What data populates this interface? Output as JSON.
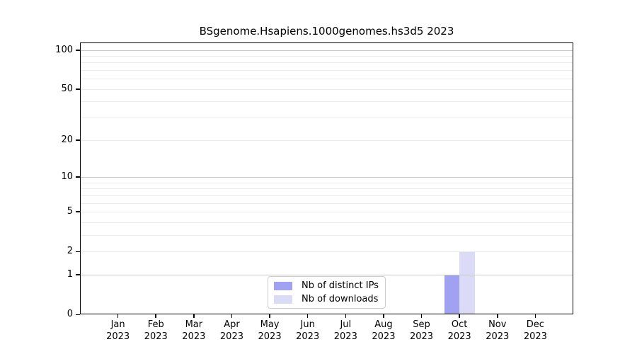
{
  "chart_data": {
    "type": "bar",
    "title": "BSgenome.Hsapiens.1000genomes.hs3d5 2023",
    "year_label": "2023",
    "categories": [
      "Jan",
      "Feb",
      "Mar",
      "Apr",
      "May",
      "Jun",
      "Jul",
      "Aug",
      "Sep",
      "Oct",
      "Nov",
      "Dec"
    ],
    "series": [
      {
        "name": "Nb of distinct IPs",
        "color": "#a1a1f2",
        "values": [
          0,
          0,
          0,
          0,
          0,
          0,
          0,
          0,
          0,
          1,
          0,
          0
        ]
      },
      {
        "name": "Nb of downloads",
        "color": "#dbdbf8",
        "values": [
          0,
          0,
          0,
          0,
          0,
          0,
          0,
          0,
          0,
          2,
          0,
          0
        ]
      }
    ],
    "xlabel": "",
    "ylabel": "",
    "yscale": "log10(x+1)",
    "ylim": [
      0,
      114
    ],
    "yticks": [
      0,
      1,
      2,
      5,
      10,
      20,
      50,
      100
    ],
    "major_gridlines": [
      1,
      10,
      100
    ],
    "minor_gridlines": [
      2,
      3,
      4,
      5,
      6,
      7,
      8,
      9,
      20,
      30,
      40,
      50,
      60,
      70,
      80,
      90
    ],
    "grid": true,
    "legend_position": "lower center",
    "colors": {
      "major_grid": "#c9c9c9",
      "minor_grid": "#ececec",
      "axis": "#000000",
      "background": "#ffffff"
    }
  }
}
